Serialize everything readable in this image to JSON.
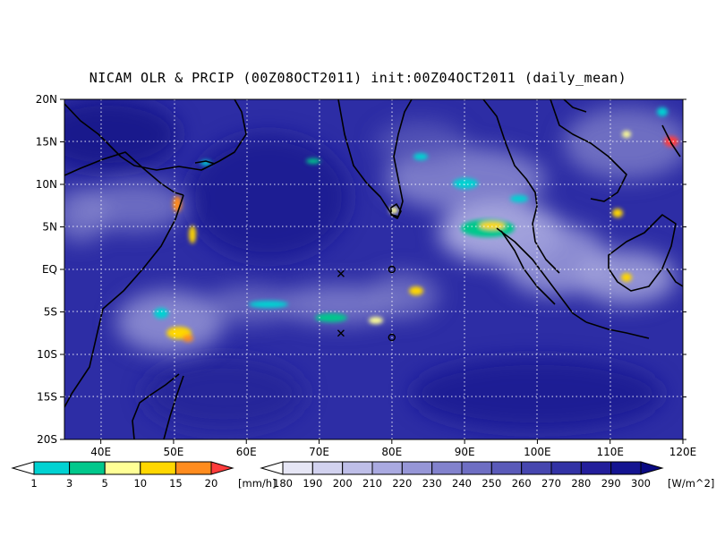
{
  "title": "NICAM OLR & PRCIP (00Z08OCT2011) init:00Z04OCT2011 (daily_mean)",
  "lat_labels": [
    "20N",
    "15N",
    "10N",
    "5N",
    "EQ",
    "5S",
    "10S",
    "15S",
    "20S"
  ],
  "lon_labels": [
    "40E",
    "50E",
    "60E",
    "70E",
    "80E",
    "90E",
    "100E",
    "110E",
    "120E"
  ],
  "map_extent": {
    "lon_min": 35,
    "lon_max": 120,
    "lat_min": -20,
    "lat_max": 20
  },
  "precip_colorbar": {
    "labels": [
      "1",
      "3",
      "5",
      "10",
      "15",
      "20"
    ],
    "unit": "[mm/h]",
    "colors": [
      "#ffffff",
      "#00d2d2",
      "#00c88c",
      "#ffff96",
      "#ffd700",
      "#ff8c1e",
      "#ff3c3c"
    ]
  },
  "olr_colorbar": {
    "labels": [
      "180",
      "190",
      "200",
      "210",
      "220",
      "230",
      "240",
      "250",
      "260",
      "270",
      "280",
      "290",
      "300"
    ],
    "unit": "[W/m^2]",
    "colors": [
      "#ffffff",
      "#e6e6f5",
      "#d2d2ef",
      "#bebee8",
      "#aaaae1",
      "#9696d7",
      "#8282cd",
      "#6e6ec3",
      "#5a5ab9",
      "#4646af",
      "#3232a5",
      "#231e9b",
      "#141491",
      "#0a0a82"
    ]
  },
  "colors": {
    "ocean_base": "#2d2da5",
    "coast": "#000000",
    "grid": "#ffffff"
  },
  "markers": [
    {
      "symbol": "x",
      "lon": 73,
      "lat": -0.5
    },
    {
      "symbol": "o",
      "lon": 80,
      "lat": 0
    },
    {
      "symbol": "x",
      "lon": 73,
      "lat": -7.5
    },
    {
      "symbol": "o",
      "lon": 80,
      "lat": -8
    }
  ]
}
